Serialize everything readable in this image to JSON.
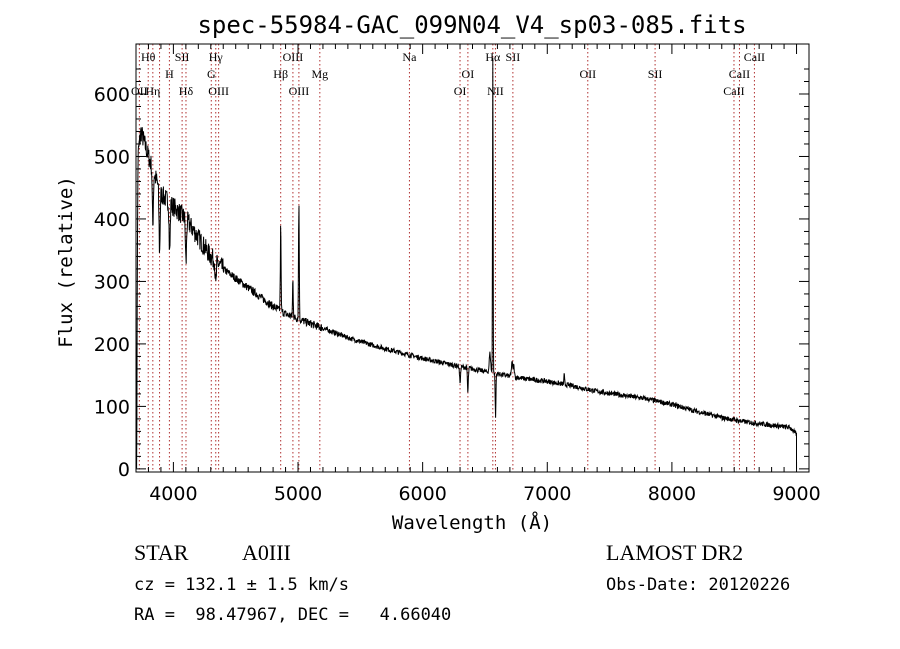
{
  "chart_data": {
    "type": "line",
    "title": "spec-55984-GAC_099N04_V4_sp03-085.fits",
    "xlabel": "Wavelength (Å)",
    "ylabel": "Flux (relative)",
    "xlim": [
      3700,
      9100
    ],
    "ylim": [
      -5,
      680
    ],
    "x_ticks": [
      4000,
      5000,
      6000,
      7000,
      8000,
      9000
    ],
    "y_ticks": [
      0,
      100,
      200,
      300,
      400,
      500,
      600
    ],
    "grid": false,
    "series": [
      {
        "continuum": [
          [
            3700,
            480
          ],
          [
            3740,
            540
          ],
          [
            3800,
            500
          ],
          [
            3850,
            470
          ],
          [
            3900,
            440
          ],
          [
            3950,
            430
          ],
          [
            4000,
            420
          ],
          [
            4100,
            400
          ],
          [
            4200,
            370
          ],
          [
            4300,
            340
          ],
          [
            4400,
            320
          ],
          [
            4500,
            305
          ],
          [
            4600,
            290
          ],
          [
            4700,
            275
          ],
          [
            4800,
            260
          ],
          [
            4900,
            248
          ],
          [
            5000,
            240
          ],
          [
            5200,
            225
          ],
          [
            5400,
            210
          ],
          [
            5600,
            198
          ],
          [
            5800,
            187
          ],
          [
            6000,
            177
          ],
          [
            6200,
            168
          ],
          [
            6400,
            160
          ],
          [
            6600,
            152
          ],
          [
            6800,
            145
          ],
          [
            7000,
            140
          ],
          [
            7200,
            133
          ],
          [
            7400,
            124
          ],
          [
            7600,
            118
          ],
          [
            7800,
            112
          ],
          [
            8000,
            103
          ],
          [
            8200,
            92
          ],
          [
            8400,
            82
          ],
          [
            8600,
            75
          ],
          [
            8800,
            70
          ],
          [
            8950,
            66
          ],
          [
            9000,
            55
          ]
        ],
        "features": [
          {
            "x": 3705,
            "dx": 6,
            "dy": -480
          },
          {
            "x": 3835,
            "dx": 6,
            "dy": -90
          },
          {
            "x": 3889,
            "dx": 6,
            "dy": -100
          },
          {
            "x": 3970,
            "dx": 6,
            "dy": -80
          },
          {
            "x": 4101,
            "dx": 6,
            "dy": -70
          },
          {
            "x": 4340,
            "dx": 6,
            "dy": -40
          },
          {
            "x": 4861,
            "dx": 4,
            "dy": 140
          },
          {
            "x": 4959,
            "dx": 4,
            "dy": 60
          },
          {
            "x": 5007,
            "dx": 4,
            "dy": 185
          },
          {
            "x": 6300,
            "dx": 6,
            "dy": -25
          },
          {
            "x": 6363,
            "dx": 5,
            "dy": -40
          },
          {
            "x": 6540,
            "dx": 8,
            "dy": 30
          },
          {
            "x": 6563,
            "dx": 3,
            "dy": 520
          },
          {
            "x": 6585,
            "dx": 4,
            "dy": -70
          },
          {
            "x": 6717,
            "dx": 6,
            "dy": 25
          },
          {
            "x": 6731,
            "dx": 6,
            "dy": 18
          },
          {
            "x": 7136,
            "dx": 4,
            "dy": 15
          }
        ],
        "noise": 8
      }
    ],
    "annotations": [
      {
        "label": "Hθ",
        "x": 3798,
        "row": 1
      },
      {
        "label": "H",
        "x": 3968,
        "row": 2
      },
      {
        "label": "SII",
        "x": 4070,
        "row": 1
      },
      {
        "label": "Hδ",
        "x": 4101,
        "row": 3
      },
      {
        "label": "OII",
        "x": 3727,
        "row": 4
      },
      {
        "label": "Hη",
        "x": 3835,
        "row": 4
      },
      {
        "label": "Hγ",
        "x": 4340,
        "row": 1
      },
      {
        "label": "G",
        "x": 4304,
        "row": 2
      },
      {
        "label": "OIII",
        "x": 4363,
        "row": 3
      },
      {
        "label": "OIII",
        "x": 4959,
        "row": 1
      },
      {
        "label": "Hβ",
        "x": 4861,
        "row": 2
      },
      {
        "label": "Mg",
        "x": 5175,
        "row": 2
      },
      {
        "label": "OIII",
        "x": 5007,
        "row": 3
      },
      {
        "label": "Na",
        "x": 5894,
        "row": 1
      },
      {
        "label": "OI",
        "x": 6363,
        "row": 2
      },
      {
        "label": "OI",
        "x": 6300,
        "row": 3
      },
      {
        "label": "Hα",
        "x": 6563,
        "row": 1
      },
      {
        "label": "SII",
        "x": 6724,
        "row": 1
      },
      {
        "label": "NII",
        "x": 6584,
        "row": 3
      },
      {
        "label": "OII",
        "x": 7325,
        "row": 2
      },
      {
        "label": "SII",
        "x": 7865,
        "row": 2
      },
      {
        "label": "CaII",
        "x": 8662,
        "row": 1
      },
      {
        "label": "CaII",
        "x": 8542,
        "row": 2
      },
      {
        "label": "CaII",
        "x": 8498,
        "row": 3
      }
    ],
    "line_markers": [
      3727,
      3798,
      3835,
      3889,
      3968,
      4070,
      4101,
      4304,
      4340,
      4363,
      4861,
      4959,
      5007,
      5175,
      5894,
      6300,
      6363,
      6563,
      6584,
      6724,
      7325,
      7865,
      8498,
      8542,
      8662
    ]
  },
  "info": {
    "object_class": "STAR",
    "subclass": "A0III",
    "redshift": "cz = 132.1 ± 1.5 km/s",
    "coords": "RA =  98.47967, DEC =   4.66040",
    "survey": "LAMOST DR2",
    "obs_date": "Obs-Date: 20120226"
  },
  "colors": {
    "spectrum": "#000000",
    "marker": "#b03030"
  }
}
